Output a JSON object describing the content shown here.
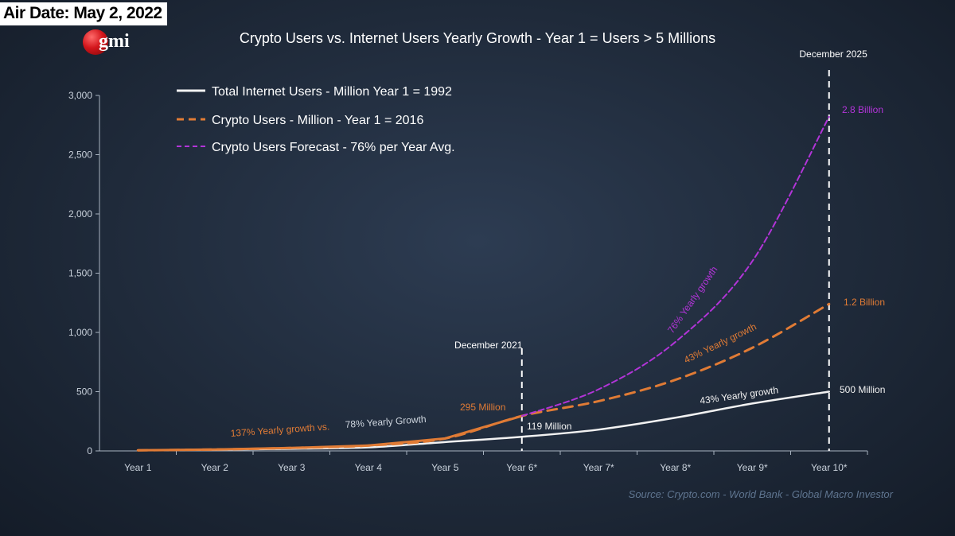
{
  "air_date": "Air Date: May 2, 2022",
  "logo": {
    "text": "gmi",
    "brand_color": "#d3161c"
  },
  "title": "Crypto Users vs. Internet Users Yearly Growth - Year 1 = Users > 5 Millions",
  "source": "Source: Crypto.com - World Bank - Global Macro Investor",
  "chart_data": {
    "type": "line",
    "title": "Crypto Users vs. Internet Users Yearly Growth - Year 1 = Users > 5 Millions",
    "xlabel": "",
    "ylabel": "",
    "categories": [
      "Year 1",
      "Year 2",
      "Year 3",
      "Year 4",
      "Year 5",
      "Year 6*",
      "Year 7*",
      "Year 8*",
      "Year 9*",
      "Year 10*"
    ],
    "ylim": [
      0,
      3000
    ],
    "yticks": [
      0,
      500,
      1000,
      1500,
      2000,
      2500,
      3000
    ],
    "ytick_labels": [
      "0",
      "500",
      "1,000",
      "1,500",
      "2,000",
      "2,500",
      "3,000"
    ],
    "grid": false,
    "legend_position": "top-left",
    "series": [
      {
        "name": "Total Internet Users - Million Year 1 = 1992",
        "style": "solid",
        "color": "#f2f2f2",
        "values": [
          5,
          10,
          18,
          30,
          75,
          119,
          180,
          280,
          400,
          500
        ]
      },
      {
        "name": "Crypto Users - Million - Year 1 = 2016",
        "style": "dashed",
        "color": "#e07b35",
        "values": [
          5,
          12,
          25,
          45,
          105,
          295,
          420,
          600,
          870,
          1240
        ]
      },
      {
        "name": "Crypto Users Forecast - 76% per Year Avg.",
        "style": "dashed",
        "color": "#b234d8",
        "values": [
          null,
          null,
          null,
          null,
          null,
          295,
          520,
          920,
          1600,
          2820
        ]
      }
    ],
    "vertical_markers": [
      {
        "category": "Year 6*",
        "label": "December 2021"
      },
      {
        "category": "Year 10*",
        "label": "December 2025"
      }
    ],
    "annotations": [
      {
        "text": "137% Yearly growth vs.",
        "color": "#e07b35"
      },
      {
        "text": "78% Yearly Growth",
        "color": "#cfd6df"
      },
      {
        "text": "295 Million",
        "color": "#e07b35"
      },
      {
        "text": "119 Million",
        "color": "#f2f2f2"
      },
      {
        "text": "43% Yearly growth",
        "color": "#f2f2f2"
      },
      {
        "text": "43% Yearly growth",
        "color": "#e07b35"
      },
      {
        "text": "76% Yearly growth",
        "color": "#b234d8"
      },
      {
        "text": "500 Million",
        "color": "#f2f2f2"
      },
      {
        "text": "1.2 Billion",
        "color": "#e07b35"
      },
      {
        "text": "2.8 Billion",
        "color": "#b234d8"
      }
    ]
  }
}
